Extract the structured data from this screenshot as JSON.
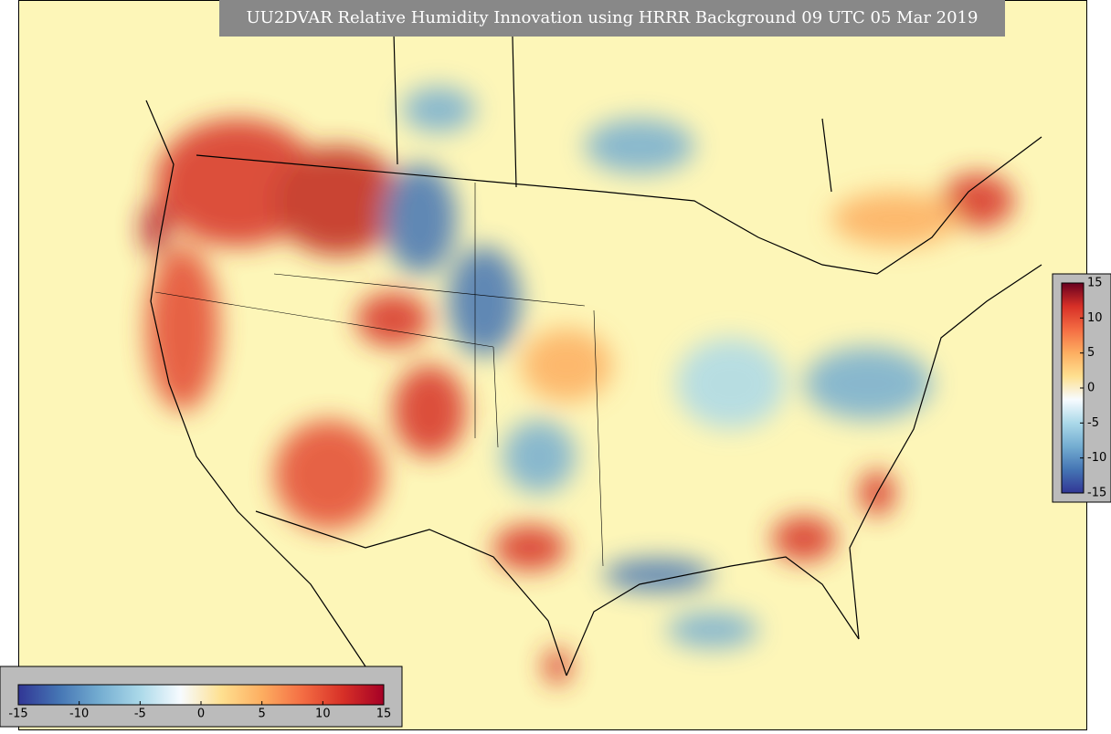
{
  "title": "UU2DVAR Relative Humidity Innovation using HRRR Background 09 UTC 05 Mar 2019",
  "colorbar_horizontal": {
    "lim": [
      -15,
      15
    ],
    "ticks": [
      -15,
      -10,
      -5,
      0,
      5,
      10,
      15
    ],
    "colors": [
      "#313695",
      "#4575b4",
      "#74add1",
      "#abd9e9",
      "#f7fbff",
      "#fee090",
      "#fdae61",
      "#f46d43",
      "#d73027",
      "#a50026"
    ]
  },
  "colorbar_vertical": {
    "lim": [
      -15,
      15
    ],
    "ticks": [
      15,
      10,
      5,
      0,
      -5,
      -10,
      -15
    ],
    "colors": [
      "#313695",
      "#4575b4",
      "#74add1",
      "#abd9e9",
      "#f7fbff",
      "#fee090",
      "#fdae61",
      "#f46d43",
      "#d73027",
      "#67001f"
    ]
  }
}
